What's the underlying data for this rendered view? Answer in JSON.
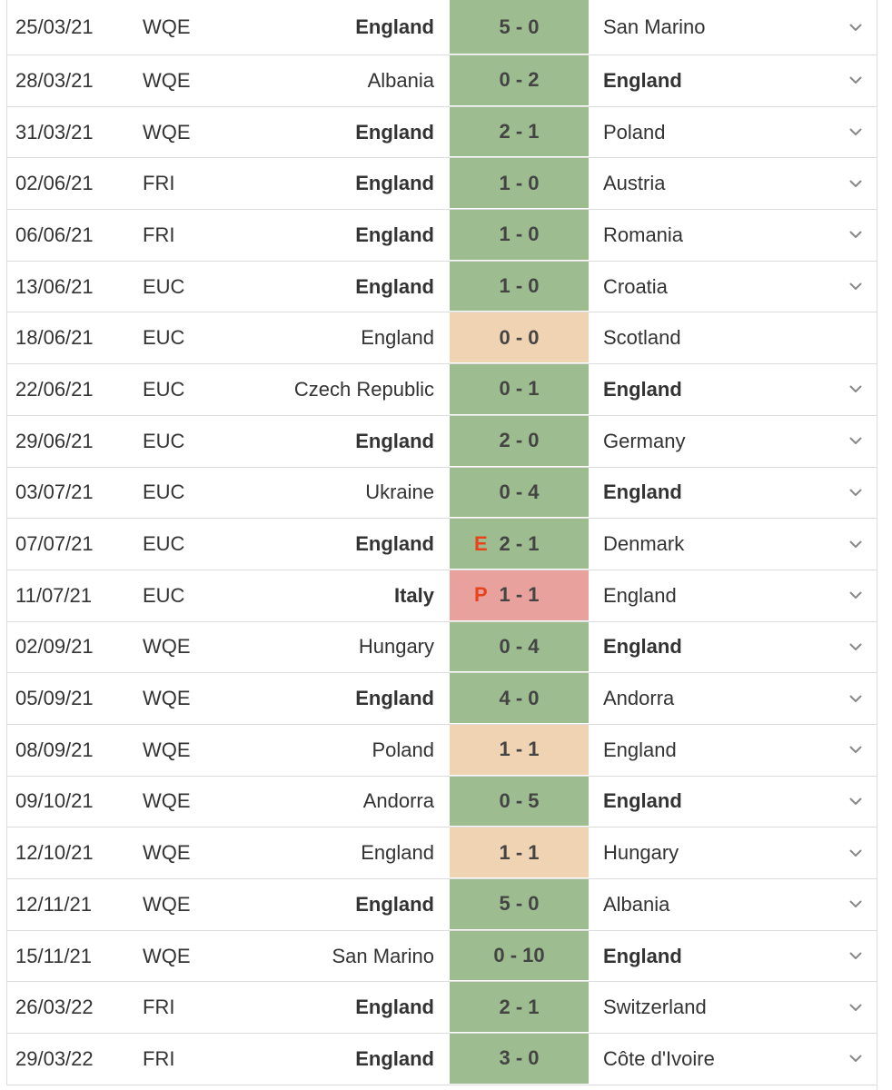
{
  "matches": [
    {
      "date": "25/03/21",
      "comp": "WQE",
      "home": "England",
      "away": "San Marino",
      "score": "5 - 0",
      "marker": "",
      "result": "win",
      "bold": "home",
      "chevron": true
    },
    {
      "date": "28/03/21",
      "comp": "WQE",
      "home": "Albania",
      "away": "England",
      "score": "0 - 2",
      "marker": "",
      "result": "win",
      "bold": "away",
      "chevron": true
    },
    {
      "date": "31/03/21",
      "comp": "WQE",
      "home": "England",
      "away": "Poland",
      "score": "2 - 1",
      "marker": "",
      "result": "win",
      "bold": "home",
      "chevron": true
    },
    {
      "date": "02/06/21",
      "comp": "FRI",
      "home": "England",
      "away": "Austria",
      "score": "1 - 0",
      "marker": "",
      "result": "win",
      "bold": "home",
      "chevron": true
    },
    {
      "date": "06/06/21",
      "comp": "FRI",
      "home": "England",
      "away": "Romania",
      "score": "1 - 0",
      "marker": "",
      "result": "win",
      "bold": "home",
      "chevron": true
    },
    {
      "date": "13/06/21",
      "comp": "EUC",
      "home": "England",
      "away": "Croatia",
      "score": "1 - 0",
      "marker": "",
      "result": "win",
      "bold": "home",
      "chevron": true
    },
    {
      "date": "18/06/21",
      "comp": "EUC",
      "home": "England",
      "away": "Scotland",
      "score": "0 - 0",
      "marker": "",
      "result": "draw",
      "bold": "none",
      "chevron": false
    },
    {
      "date": "22/06/21",
      "comp": "EUC",
      "home": "Czech Republic",
      "away": "England",
      "score": "0 - 1",
      "marker": "",
      "result": "win",
      "bold": "away",
      "chevron": true
    },
    {
      "date": "29/06/21",
      "comp": "EUC",
      "home": "England",
      "away": "Germany",
      "score": "2 - 0",
      "marker": "",
      "result": "win",
      "bold": "home",
      "chevron": true
    },
    {
      "date": "03/07/21",
      "comp": "EUC",
      "home": "Ukraine",
      "away": "England",
      "score": "0 - 4",
      "marker": "",
      "result": "win",
      "bold": "away",
      "chevron": true
    },
    {
      "date": "07/07/21",
      "comp": "EUC",
      "home": "England",
      "away": "Denmark",
      "score": "2 - 1",
      "marker": "E",
      "result": "win",
      "bold": "home",
      "chevron": true
    },
    {
      "date": "11/07/21",
      "comp": "EUC",
      "home": "Italy",
      "away": "England",
      "score": "1 - 1",
      "marker": "P",
      "result": "loss",
      "bold": "home",
      "chevron": true
    },
    {
      "date": "02/09/21",
      "comp": "WQE",
      "home": "Hungary",
      "away": "England",
      "score": "0 - 4",
      "marker": "",
      "result": "win",
      "bold": "away",
      "chevron": true
    },
    {
      "date": "05/09/21",
      "comp": "WQE",
      "home": "England",
      "away": "Andorra",
      "score": "4 - 0",
      "marker": "",
      "result": "win",
      "bold": "home",
      "chevron": true
    },
    {
      "date": "08/09/21",
      "comp": "WQE",
      "home": "Poland",
      "away": "England",
      "score": "1 - 1",
      "marker": "",
      "result": "draw",
      "bold": "none",
      "chevron": true
    },
    {
      "date": "09/10/21",
      "comp": "WQE",
      "home": "Andorra",
      "away": "England",
      "score": "0 - 5",
      "marker": "",
      "result": "win",
      "bold": "away",
      "chevron": true
    },
    {
      "date": "12/10/21",
      "comp": "WQE",
      "home": "England",
      "away": "Hungary",
      "score": "1 - 1",
      "marker": "",
      "result": "draw",
      "bold": "none",
      "chevron": true
    },
    {
      "date": "12/11/21",
      "comp": "WQE",
      "home": "England",
      "away": "Albania",
      "score": "5 - 0",
      "marker": "",
      "result": "win",
      "bold": "home",
      "chevron": true
    },
    {
      "date": "15/11/21",
      "comp": "WQE",
      "home": "San Marino",
      "away": "England",
      "score": "0 - 10",
      "marker": "",
      "result": "win",
      "bold": "away",
      "chevron": true
    },
    {
      "date": "26/03/22",
      "comp": "FRI",
      "home": "England",
      "away": "Switzerland",
      "score": "2 - 1",
      "marker": "",
      "result": "win",
      "bold": "home",
      "chevron": true
    },
    {
      "date": "29/03/22",
      "comp": "FRI",
      "home": "England",
      "away": "Côte d'Ivoire",
      "score": "3 - 0",
      "marker": "",
      "result": "win",
      "bold": "home",
      "chevron": true
    }
  ],
  "colors": {
    "win": "#9dbc90",
    "draw": "#f0d3b2",
    "loss": "#e8a19d",
    "marker": "#e8431c",
    "text": "#333333",
    "divider": "#dddddd"
  },
  "icons": {
    "expand": "chevron-down-icon"
  }
}
